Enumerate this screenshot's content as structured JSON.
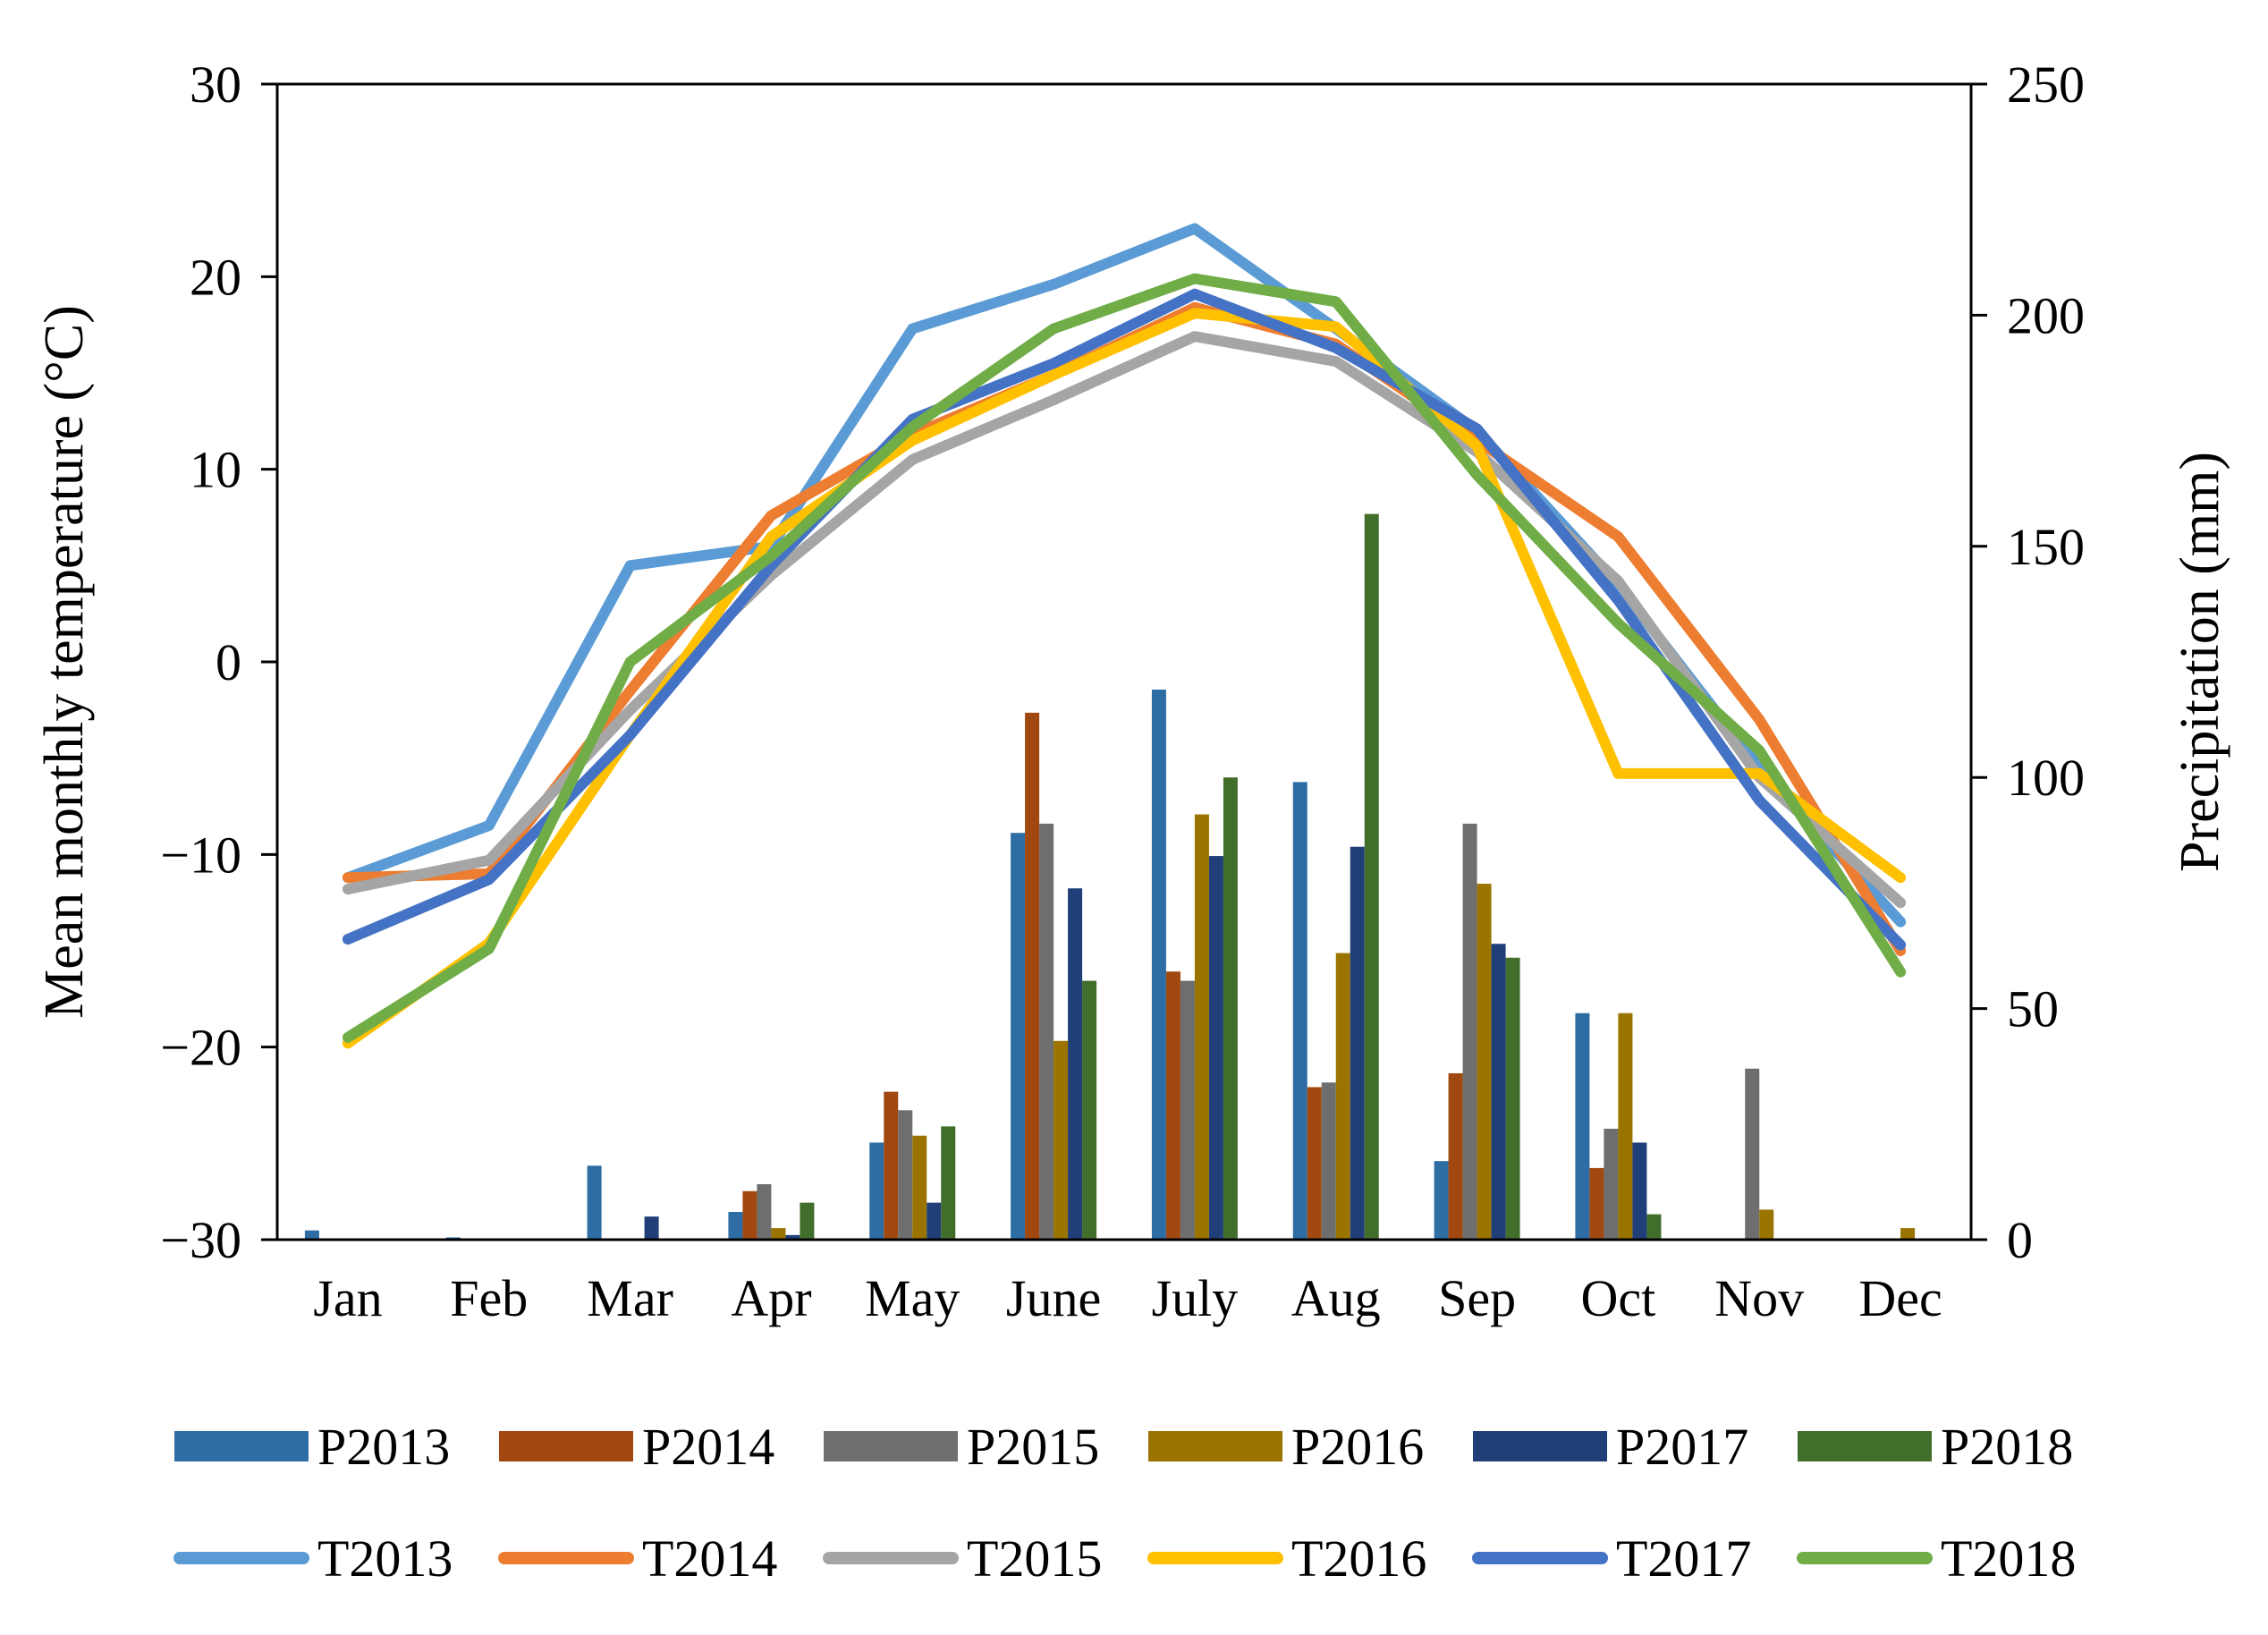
{
  "chart_data": {
    "type": "bar+line",
    "title": "",
    "xlabel": "",
    "ylabel_left": "Mean monthly temperature (°C)",
    "ylabel_right": "Precipitation (mm)",
    "ylim_left": [
      -30,
      30
    ],
    "ylim_right": [
      0,
      250
    ],
    "yticks_left": [
      "−30",
      "−20",
      "−10",
      "0",
      "10",
      "20",
      "30"
    ],
    "yticks_right": [
      "0",
      "50",
      "100",
      "150",
      "200",
      "250"
    ],
    "categories": [
      "Jan",
      "Feb",
      "Mar",
      "Apr",
      "May",
      "June",
      "July",
      "Aug",
      "Sep",
      "Oct",
      "Nov",
      "Dec"
    ],
    "bar_series": [
      {
        "name": "P2013",
        "color": "#2e6da4",
        "values": [
          2,
          0.5,
          16,
          6,
          21,
          88,
          119,
          99,
          17,
          49,
          0,
          0
        ]
      },
      {
        "name": "P2014",
        "color": "#a0480f",
        "values": [
          0,
          0,
          0,
          10.5,
          32,
          114,
          58,
          33,
          36,
          15.5,
          0,
          0
        ]
      },
      {
        "name": "P2015",
        "color": "#6e6e6e",
        "values": [
          0,
          0,
          0,
          12,
          28,
          90,
          56,
          34,
          90,
          24,
          37,
          0
        ]
      },
      {
        "name": "P2016",
        "color": "#9a7300",
        "values": [
          0,
          0,
          0,
          2.5,
          22.5,
          43,
          92,
          62,
          77,
          49,
          6.5,
          2.5
        ]
      },
      {
        "name": "P2017",
        "color": "#203f78",
        "values": [
          0,
          0,
          5,
          1,
          8,
          76,
          83,
          85,
          64,
          21,
          0,
          0
        ]
      },
      {
        "name": "P2018",
        "color": "#426e2c",
        "values": [
          0,
          0,
          0,
          8,
          24.5,
          56,
          100,
          157,
          61,
          5.5,
          0,
          0
        ]
      }
    ],
    "line_series": [
      {
        "name": "T2013",
        "color": "#5b9bd5",
        "values": [
          -11.2,
          -8.5,
          5.0,
          6.0,
          17.3,
          19.6,
          22.5,
          17.3,
          12.0,
          4.0,
          -5.5,
          -13.5
        ]
      },
      {
        "name": "T2014",
        "color": "#ed7d31",
        "values": [
          -11.2,
          -11.0,
          -1.5,
          7.6,
          11.8,
          14.9,
          18.4,
          16.5,
          11.5,
          6.5,
          -3.0,
          -15.0
        ]
      },
      {
        "name": "T2015",
        "color": "#a5a5a5",
        "values": [
          -11.8,
          -10.3,
          -2.5,
          4.5,
          10.5,
          13.6,
          16.9,
          15.6,
          10.9,
          4.2,
          -6.0,
          -12.5
        ]
      },
      {
        "name": "T2016",
        "color": "#ffc000",
        "values": [
          -19.8,
          -14.6,
          -3.8,
          6.5,
          11.5,
          14.9,
          18.1,
          17.4,
          11.2,
          -5.8,
          -5.8,
          -11.2
        ]
      },
      {
        "name": "T2017",
        "color": "#4472c4",
        "values": [
          -14.4,
          -11.3,
          -3.8,
          5.0,
          12.6,
          15.5,
          19.1,
          16.3,
          12.1,
          3.2,
          -7.2,
          -14.7
        ]
      },
      {
        "name": "T2018",
        "color": "#70ad47",
        "values": [
          -19.5,
          -14.9,
          0.0,
          5.5,
          12.2,
          17.3,
          19.9,
          18.7,
          9.7,
          2.0,
          -4.6,
          -16.1
        ]
      }
    ],
    "legend_position": "bottom",
    "grid": false
  }
}
